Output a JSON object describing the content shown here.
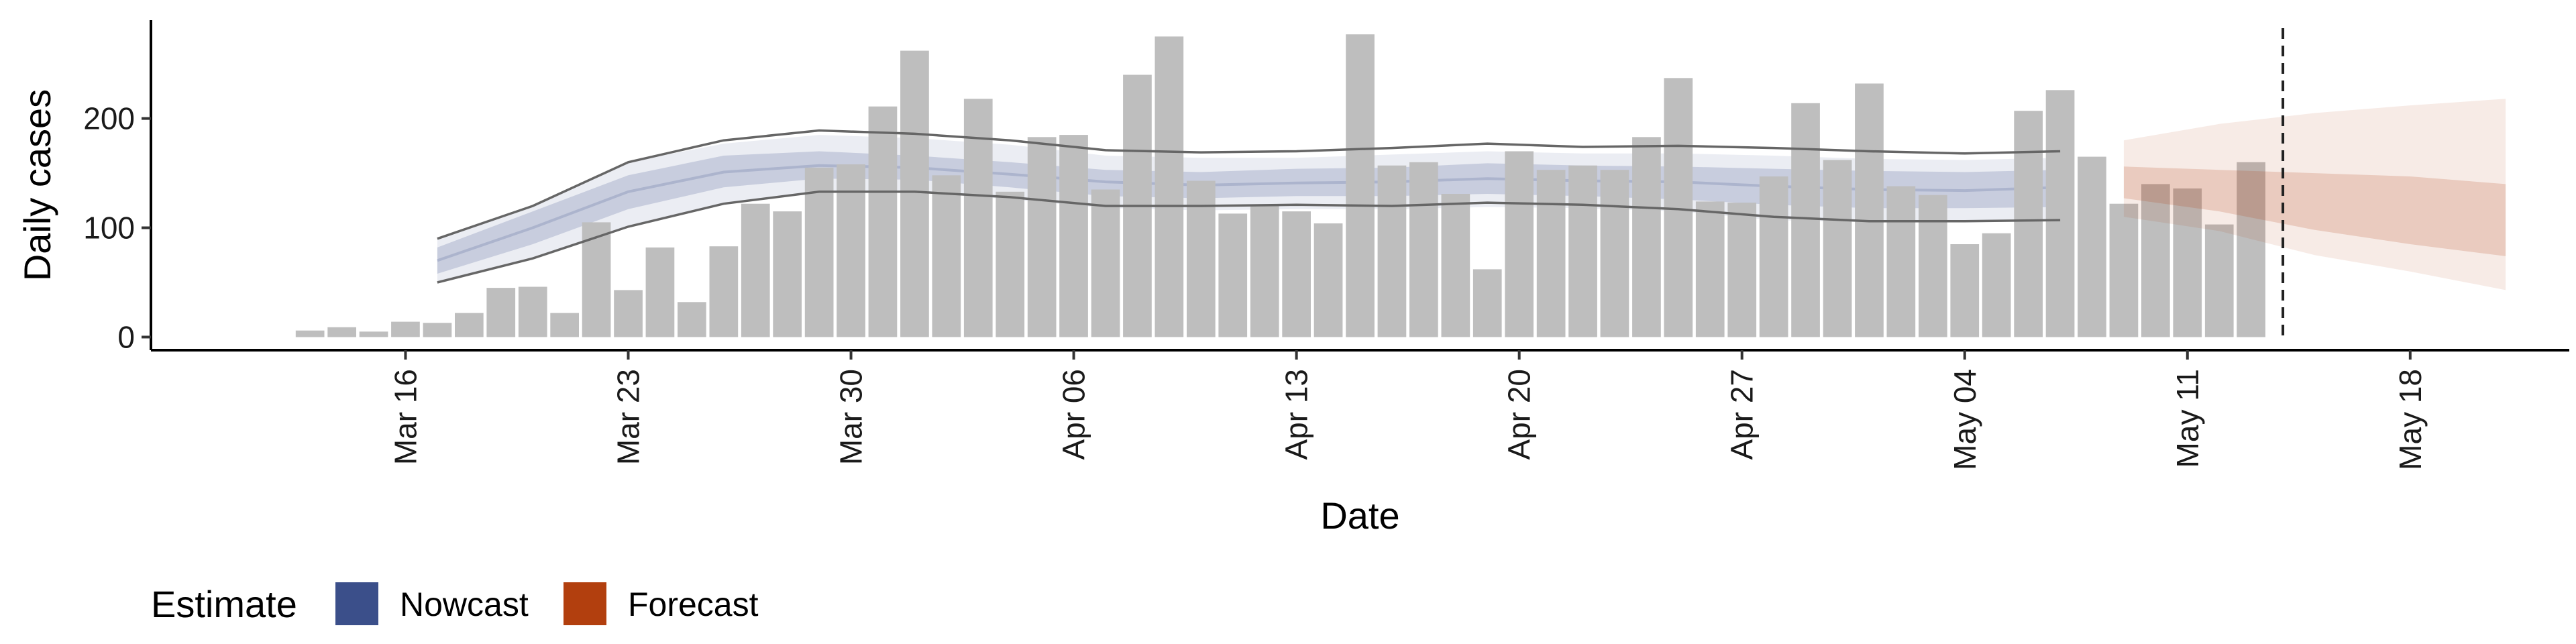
{
  "chart_data": {
    "type": "bar",
    "xlabel": "Date",
    "ylabel": "Daily cases",
    "x_start": "2020-03-13",
    "x_ticks": [
      "Mar 16",
      "Mar 23",
      "Mar 30",
      "Apr 06",
      "Apr 13",
      "Apr 20",
      "Apr 27",
      "May 04",
      "May 11",
      "May 18"
    ],
    "y_ticks": [
      "0",
      "100",
      "200"
    ],
    "ylim": [
      -12,
      290
    ],
    "xlim": [
      "2020-03-08",
      "2020-05-23"
    ],
    "bar_color": "#bebebe",
    "bars": [
      6,
      9,
      5,
      14,
      13,
      22,
      45,
      46,
      22,
      105,
      43,
      82,
      32,
      83,
      122,
      115,
      155,
      158,
      211,
      262,
      148,
      218,
      133,
      183,
      185,
      135,
      240,
      275,
      143,
      113,
      120,
      115,
      104,
      277,
      157,
      160,
      131,
      62,
      170,
      153,
      157,
      153,
      183,
      237,
      124,
      123,
      147,
      214,
      162,
      232,
      138,
      130,
      85,
      95,
      207,
      226,
      165,
      122,
      140,
      136,
      103,
      160
    ],
    "nowcast": {
      "color": "#3b4f8a",
      "dates": [
        "2020-03-17",
        "2020-03-20",
        "2020-03-23",
        "2020-03-26",
        "2020-03-29",
        "2020-04-01",
        "2020-04-04",
        "2020-04-07",
        "2020-04-10",
        "2020-04-13",
        "2020-04-16",
        "2020-04-19",
        "2020-04-22",
        "2020-04-25",
        "2020-04-28",
        "2020-05-01",
        "2020-05-04",
        "2020-05-07"
      ],
      "outer_low": [
        50,
        72,
        100,
        122,
        132,
        133,
        126,
        118,
        116,
        117,
        117,
        119,
        118,
        115,
        107,
        105,
        105,
        106
      ],
      "inner_low": [
        58,
        85,
        117,
        137,
        145,
        144,
        137,
        129,
        127,
        129,
        129,
        131,
        129,
        126,
        121,
        118,
        118,
        119
      ],
      "median": [
        70,
        100,
        133,
        151,
        157,
        155,
        149,
        142,
        139,
        141,
        142,
        145,
        143,
        142,
        138,
        135,
        134,
        137
      ],
      "inner_high": [
        82,
        115,
        148,
        166,
        170,
        166,
        160,
        153,
        151,
        154,
        155,
        159,
        157,
        156,
        154,
        152,
        151,
        153
      ],
      "outer_high": [
        90,
        120,
        160,
        177,
        185,
        182,
        176,
        166,
        164,
        164,
        167,
        170,
        168,
        168,
        166,
        163,
        162,
        164
      ],
      "line_low": [
        50,
        72,
        101,
        122,
        133,
        133,
        128,
        120,
        120,
        121,
        120,
        123,
        121,
        117,
        110,
        106,
        106,
        107
      ],
      "line_high": [
        90,
        120,
        160,
        180,
        189,
        186,
        180,
        171,
        169,
        170,
        173,
        177,
        174,
        175,
        173,
        170,
        168,
        170
      ]
    },
    "forecast": {
      "color": "#b23f0e",
      "dates": [
        "2020-05-09",
        "2020-05-12",
        "2020-05-15",
        "2020-05-18",
        "2020-05-21"
      ],
      "outer_low": [
        110,
        97,
        75,
        60,
        43
      ],
      "inner_low": [
        127,
        115,
        98,
        85,
        74
      ],
      "inner_high": [
        156,
        153,
        150,
        147,
        140
      ],
      "outer_high": [
        180,
        195,
        205,
        212,
        218
      ]
    },
    "vline_date": "2020-05-14",
    "legend": {
      "title": "Estimate",
      "items": [
        {
          "label": "Nowcast",
          "color": "#3b4f8a"
        },
        {
          "label": "Forecast",
          "color": "#b23f0e"
        }
      ]
    }
  }
}
